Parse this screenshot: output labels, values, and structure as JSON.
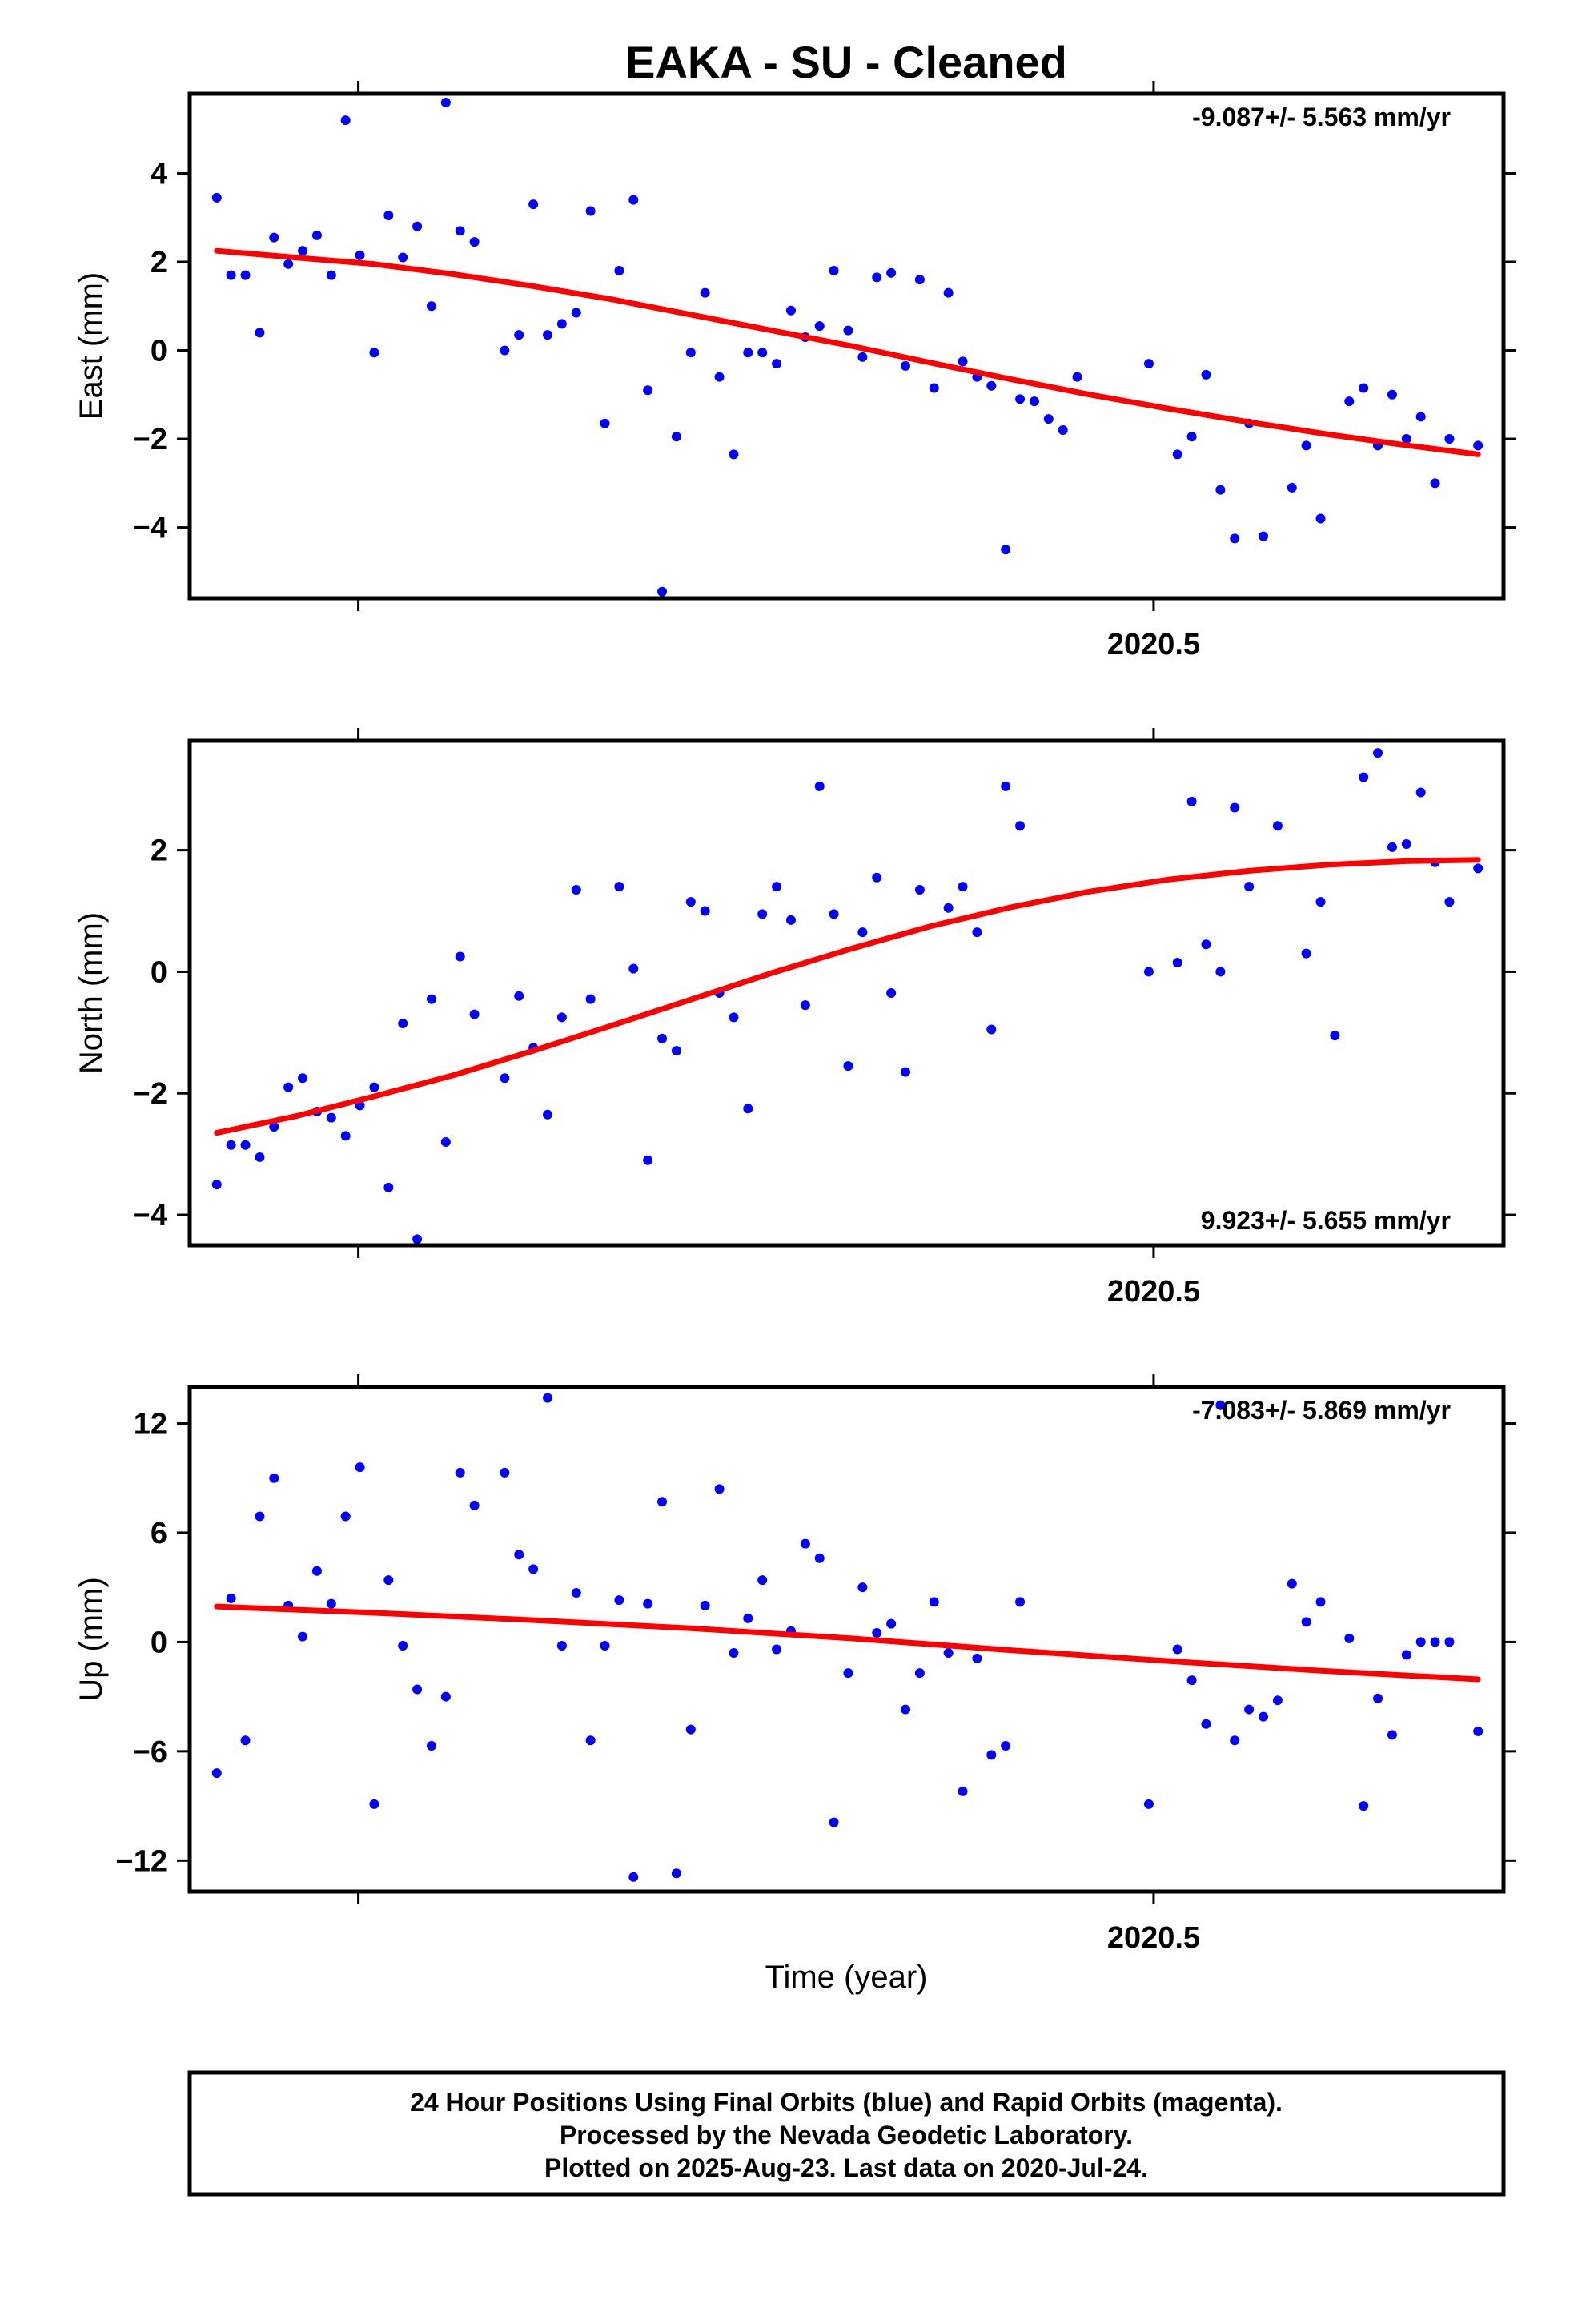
{
  "title": "EAKA  - SU - Cleaned",
  "colors": {
    "final_orbits": "#0000ff",
    "fit_line": "#ff0000",
    "frame": "#000000"
  },
  "chart_data": [
    {
      "type": "scatter",
      "component": "east",
      "ylabel": "East (mm)",
      "xlabel": "",
      "xtick_label": "2020.5",
      "xlim": [
        2019.894,
        2020.72
      ],
      "ylim": [
        -5.6,
        5.8
      ],
      "yticks": [
        -4,
        -2,
        0,
        2,
        4
      ],
      "rate": "-9.087+/- 5.563 mm/yr",
      "rate_position": "top-right",
      "series": [
        {
          "x": [
            2019.911,
            2019.92,
            2019.929,
            2019.938,
            2019.947,
            2019.956,
            2019.965,
            2019.974,
            2019.983,
            2019.992,
            2020.001,
            2020.01,
            2020.019,
            2020.028,
            2020.037,
            2020.046,
            2020.055,
            2020.064,
            2020.073,
            2020.092,
            2020.101,
            2020.11,
            2020.119,
            2020.128,
            2020.137,
            2020.146,
            2020.155,
            2020.164,
            2020.173,
            2020.182,
            2020.191,
            2020.2,
            2020.209,
            2020.218,
            2020.227,
            2020.236,
            2020.245,
            2020.254,
            2020.263,
            2020.272,
            2020.281,
            2020.29,
            2020.299,
            2020.308,
            2020.317,
            2020.326,
            2020.335,
            2020.344,
            2020.353,
            2020.362,
            2020.371,
            2020.38,
            2020.389,
            2020.398,
            2020.407,
            2020.416,
            2020.425,
            2020.434,
            2020.443,
            2020.452,
            2020.497,
            2020.515,
            2020.524,
            2020.533,
            2020.542,
            2020.551,
            2020.56,
            2020.569,
            2020.587,
            2020.596,
            2020.605,
            2020.623,
            2020.632,
            2020.641,
            2020.65,
            2020.659,
            2020.668,
            2020.677,
            2020.686,
            2020.704
          ],
          "y": [
            3.45,
            1.7,
            1.7,
            0.4,
            2.55,
            1.95,
            2.25,
            2.6,
            1.7,
            5.2,
            2.15,
            -0.05,
            3.05,
            2.1,
            2.8,
            1.0,
            5.6,
            2.7,
            2.45,
            0.0,
            0.35,
            3.3,
            0.35,
            0.6,
            0.85,
            3.15,
            -1.65,
            1.8,
            3.4,
            -0.9,
            -5.45,
            -1.95,
            -0.05,
            1.3,
            -0.6,
            -2.35,
            -0.05,
            -0.05,
            -0.3,
            0.9,
            0.3,
            0.55,
            1.8,
            0.45,
            -0.15,
            1.65,
            1.75,
            -0.35,
            1.6,
            -0.85,
            1.3,
            -0.25,
            -0.6,
            -0.8,
            -4.5,
            -1.1,
            -1.15,
            -1.55,
            -1.8,
            -0.6,
            -0.3,
            -2.35,
            -1.95,
            -0.55,
            -3.15,
            -4.25,
            -1.65,
            -4.2,
            -3.1,
            -2.15,
            -3.8,
            -1.15,
            -0.85,
            -2.15,
            -1.0,
            -2.0,
            -1.5,
            -3.0,
            -2.0,
            -2.15
          ]
        }
      ],
      "fit": {
        "x": [
          2019.911,
          2019.96,
          2020.01,
          2020.06,
          2020.11,
          2020.16,
          2020.21,
          2020.26,
          2020.31,
          2020.36,
          2020.41,
          2020.46,
          2020.51,
          2020.56,
          2020.61,
          2020.66,
          2020.704
        ],
        "y": [
          2.25,
          2.1,
          1.95,
          1.72,
          1.45,
          1.15,
          0.8,
          0.45,
          0.1,
          -0.28,
          -0.65,
          -1.0,
          -1.32,
          -1.62,
          -1.9,
          -2.15,
          -2.35
        ]
      }
    },
    {
      "type": "scatter",
      "component": "north",
      "ylabel": "North (mm)",
      "xlabel": "",
      "xtick_label": "2020.5",
      "xlim": [
        2019.894,
        2020.72
      ],
      "ylim": [
        -4.5,
        3.8
      ],
      "yticks": [
        -4,
        -2,
        0,
        2
      ],
      "rate": "9.923+/- 5.655 mm/yr",
      "rate_position": "bottom-right",
      "series": [
        {
          "x": [
            2019.911,
            2019.92,
            2019.929,
            2019.938,
            2019.947,
            2019.956,
            2019.965,
            2019.974,
            2019.983,
            2019.992,
            2020.001,
            2020.01,
            2020.019,
            2020.028,
            2020.037,
            2020.046,
            2020.055,
            2020.064,
            2020.073,
            2020.092,
            2020.101,
            2020.11,
            2020.119,
            2020.128,
            2020.137,
            2020.146,
            2020.164,
            2020.173,
            2020.182,
            2020.191,
            2020.2,
            2020.209,
            2020.218,
            2020.227,
            2020.236,
            2020.245,
            2020.254,
            2020.263,
            2020.272,
            2020.281,
            2020.29,
            2020.299,
            2020.308,
            2020.317,
            2020.326,
            2020.335,
            2020.344,
            2020.353,
            2020.371,
            2020.38,
            2020.389,
            2020.398,
            2020.407,
            2020.416,
            2020.497,
            2020.515,
            2020.524,
            2020.533,
            2020.542,
            2020.551,
            2020.56,
            2020.578,
            2020.596,
            2020.605,
            2020.614,
            2020.632,
            2020.641,
            2020.65,
            2020.659,
            2020.668,
            2020.677,
            2020.686,
            2020.704
          ],
          "y": [
            -3.5,
            -2.85,
            -2.85,
            -3.05,
            -2.55,
            -1.9,
            -1.75,
            -2.3,
            -2.4,
            -2.7,
            -2.2,
            -1.9,
            -3.55,
            -0.85,
            -4.4,
            -0.45,
            -2.8,
            0.25,
            -0.7,
            -1.75,
            -0.4,
            -1.25,
            -2.35,
            -0.75,
            1.35,
            -0.45,
            1.4,
            0.05,
            -3.1,
            -1.1,
            -1.3,
            1.15,
            1.0,
            -0.35,
            -0.75,
            -2.25,
            0.95,
            1.4,
            0.85,
            -0.55,
            3.05,
            0.95,
            -1.55,
            0.65,
            1.55,
            -0.35,
            -1.65,
            1.35,
            1.05,
            1.4,
            0.65,
            -0.95,
            3.05,
            2.4,
            0.0,
            0.15,
            2.8,
            0.45,
            0.0,
            2.7,
            1.4,
            2.4,
            0.3,
            1.15,
            -1.05,
            3.2,
            3.6,
            2.05,
            2.1,
            2.95,
            1.8,
            1.15,
            1.7
          ]
        }
      ],
      "fit": {
        "x": [
          2019.911,
          2019.96,
          2020.01,
          2020.06,
          2020.11,
          2020.16,
          2020.21,
          2020.26,
          2020.31,
          2020.36,
          2020.41,
          2020.46,
          2020.51,
          2020.56,
          2020.61,
          2020.66,
          2020.704
        ],
        "y": [
          -2.65,
          -2.38,
          -2.05,
          -1.7,
          -1.3,
          -0.88,
          -0.45,
          -0.02,
          0.38,
          0.75,
          1.06,
          1.32,
          1.52,
          1.66,
          1.76,
          1.82,
          1.84
        ]
      }
    },
    {
      "type": "scatter",
      "component": "up",
      "ylabel": "Up (mm)",
      "xlabel": "Time (year)",
      "xtick_label": "2020.5",
      "xlim": [
        2019.894,
        2020.72
      ],
      "ylim": [
        -13.7,
        14.0
      ],
      "yticks": [
        -12,
        -6,
        0,
        6,
        12
      ],
      "rate": "-7.083+/- 5.869 mm/yr",
      "rate_position": "top-right",
      "series": [
        {
          "x": [
            2019.911,
            2019.92,
            2019.929,
            2019.938,
            2019.947,
            2019.956,
            2019.965,
            2019.974,
            2019.983,
            2019.992,
            2020.001,
            2020.01,
            2020.019,
            2020.028,
            2020.037,
            2020.046,
            2020.055,
            2020.064,
            2020.073,
            2020.092,
            2020.101,
            2020.11,
            2020.119,
            2020.128,
            2020.137,
            2020.146,
            2020.155,
            2020.164,
            2020.173,
            2020.182,
            2020.191,
            2020.2,
            2020.209,
            2020.218,
            2020.227,
            2020.236,
            2020.245,
            2020.254,
            2020.263,
            2020.272,
            2020.281,
            2020.29,
            2020.299,
            2020.308,
            2020.317,
            2020.326,
            2020.335,
            2020.344,
            2020.353,
            2020.362,
            2020.371,
            2020.38,
            2020.389,
            2020.398,
            2020.407,
            2020.416,
            2020.497,
            2020.515,
            2020.524,
            2020.533,
            2020.542,
            2020.551,
            2020.56,
            2020.569,
            2020.578,
            2020.587,
            2020.596,
            2020.605,
            2020.623,
            2020.632,
            2020.641,
            2020.65,
            2020.659,
            2020.668,
            2020.677,
            2020.686,
            2020.704
          ],
          "y": [
            -7.2,
            2.4,
            -5.4,
            6.9,
            9.0,
            2.0,
            0.3,
            3.9,
            2.1,
            6.9,
            9.6,
            -8.9,
            3.4,
            -0.2,
            -2.6,
            -5.7,
            -3.0,
            9.3,
            7.5,
            9.3,
            4.8,
            4.0,
            13.4,
            -0.2,
            2.7,
            -5.4,
            -0.2,
            2.3,
            -12.9,
            2.1,
            7.7,
            -12.7,
            -4.8,
            2.0,
            8.4,
            -0.6,
            1.3,
            3.4,
            -0.4,
            0.6,
            5.4,
            4.6,
            -9.9,
            -1.7,
            3.0,
            0.5,
            1.0,
            -3.7,
            -1.7,
            2.2,
            -0.6,
            -8.2,
            -0.9,
            -6.2,
            -5.7,
            2.2,
            -8.9,
            -0.4,
            -2.1,
            -4.5,
            13.0,
            -5.4,
            -3.7,
            -4.1,
            -3.2,
            3.2,
            1.1,
            2.2,
            0.2,
            -9.0,
            -3.1,
            -5.1,
            -0.7,
            0.0,
            0.0,
            0.0,
            -4.9
          ]
        }
      ],
      "fit": {
        "x": [
          2019.911,
          2020.01,
          2020.11,
          2020.21,
          2020.31,
          2020.41,
          2020.51,
          2020.61,
          2020.704
        ],
        "y": [
          1.95,
          1.6,
          1.2,
          0.75,
          0.2,
          -0.45,
          -1.05,
          -1.6,
          -2.05
        ]
      }
    }
  ],
  "footer": {
    "line1": "24 Hour Positions Using Final Orbits (blue) and Rapid Orbits (magenta).",
    "line2": "Processed by the Nevada Geodetic Laboratory.",
    "line3": "Plotted on 2025-Aug-23. Last data on 2020-Jul-24."
  }
}
